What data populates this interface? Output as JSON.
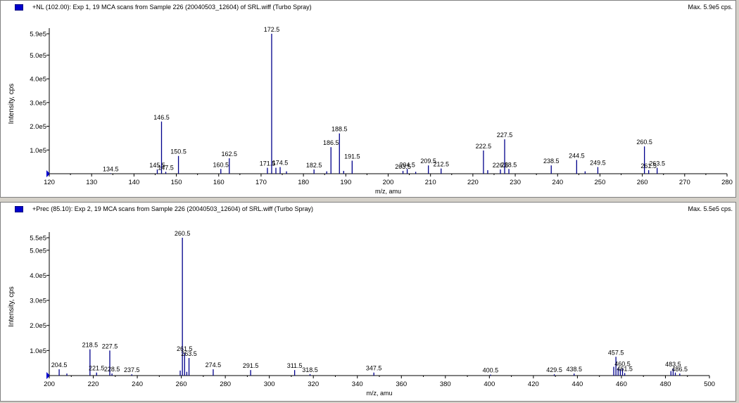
{
  "chart_data": [
    {
      "type": "bar",
      "title": "+NL (102.00): Exp 1, 19 MCA scans from Sample 226 (20040503_12604) of SRL.wiff (Turbo Spray)",
      "max_label": "Max. 5.9e5 cps.",
      "xlabel": "m/z, amu",
      "ylabel": "Intensity, cps",
      "xlim": [
        120,
        280
      ],
      "ylim": [
        0,
        600000
      ],
      "xticks": [
        120,
        130,
        140,
        150,
        160,
        170,
        180,
        190,
        200,
        210,
        220,
        230,
        240,
        250,
        260,
        270,
        280
      ],
      "yticks": [
        {
          "value": 100000,
          "label": "1.0e5"
        },
        {
          "value": 200000,
          "label": "2.0e5"
        },
        {
          "value": 300000,
          "label": "3.0e5"
        },
        {
          "value": 400000,
          "label": "4.0e5"
        },
        {
          "value": 500000,
          "label": "5.0e5"
        },
        {
          "value": 590000,
          "label": "5.9e5"
        }
      ],
      "peaks": [
        {
          "x": 134.5,
          "y": 2000,
          "label": "134.5"
        },
        {
          "x": 145.5,
          "y": 18000,
          "label": "145.5"
        },
        {
          "x": 146.5,
          "y": 220000,
          "label": "146.5"
        },
        {
          "x": 147.5,
          "y": 8000,
          "label": "147.5"
        },
        {
          "x": 150.5,
          "y": 75000,
          "label": "150.5"
        },
        {
          "x": 160.5,
          "y": 20000,
          "label": "160.5"
        },
        {
          "x": 162.5,
          "y": 65000,
          "label": "162.5"
        },
        {
          "x": 171.5,
          "y": 25000,
          "label": "171.5"
        },
        {
          "x": 172.5,
          "y": 590000,
          "label": "172.5"
        },
        {
          "x": 173.5,
          "y": 25000,
          "label": ""
        },
        {
          "x": 174.5,
          "y": 28000,
          "label": "174.5"
        },
        {
          "x": 176.0,
          "y": 10000,
          "label": ""
        },
        {
          "x": 182.5,
          "y": 18000,
          "label": "182.5"
        },
        {
          "x": 185.5,
          "y": 10000,
          "label": ""
        },
        {
          "x": 186.5,
          "y": 112000,
          "label": "186.5"
        },
        {
          "x": 188.5,
          "y": 170000,
          "label": "188.5"
        },
        {
          "x": 189.5,
          "y": 12000,
          "label": ""
        },
        {
          "x": 191.5,
          "y": 55000,
          "label": "191.5"
        },
        {
          "x": 203.5,
          "y": 12000,
          "label": "203.5"
        },
        {
          "x": 204.5,
          "y": 20000,
          "label": "204.5"
        },
        {
          "x": 206.5,
          "y": 8000,
          "label": ""
        },
        {
          "x": 209.5,
          "y": 35000,
          "label": "209.5"
        },
        {
          "x": 212.5,
          "y": 22000,
          "label": "212.5"
        },
        {
          "x": 222.5,
          "y": 98000,
          "label": "222.5"
        },
        {
          "x": 223.5,
          "y": 15000,
          "label": ""
        },
        {
          "x": 226.5,
          "y": 18000,
          "label": "226.5"
        },
        {
          "x": 227.5,
          "y": 145000,
          "label": "227.5"
        },
        {
          "x": 228.5,
          "y": 20000,
          "label": "228.5"
        },
        {
          "x": 238.5,
          "y": 35000,
          "label": "238.5"
        },
        {
          "x": 244.5,
          "y": 58000,
          "label": "244.5"
        },
        {
          "x": 246.5,
          "y": 10000,
          "label": ""
        },
        {
          "x": 249.5,
          "y": 28000,
          "label": "249.5"
        },
        {
          "x": 260.5,
          "y": 115000,
          "label": "260.5"
        },
        {
          "x": 261.5,
          "y": 15000,
          "label": "261.5"
        },
        {
          "x": 263.5,
          "y": 25000,
          "label": "263.5"
        }
      ]
    },
    {
      "type": "bar",
      "title": "+Prec (85.10): Exp 2, 19 MCA scans from Sample 226 (20040503_12604) of SRL.wiff (Turbo Spray)",
      "max_label": "Max. 5.5e5 cps.",
      "xlabel": "m/z, amu",
      "ylabel": "Intensity, cps",
      "xlim": [
        200,
        500
      ],
      "ylim": [
        0,
        560000
      ],
      "xticks": [
        200,
        220,
        240,
        260,
        280,
        300,
        320,
        340,
        360,
        380,
        400,
        420,
        440,
        460,
        480,
        500
      ],
      "yticks": [
        {
          "value": 100000,
          "label": "1.0e5"
        },
        {
          "value": 200000,
          "label": "2.0e5"
        },
        {
          "value": 300000,
          "label": "3.0e5"
        },
        {
          "value": 400000,
          "label": "4.0e5"
        },
        {
          "value": 500000,
          "label": "5.0e5"
        },
        {
          "value": 550000,
          "label": "5.5e5"
        }
      ],
      "peaks": [
        {
          "x": 204.5,
          "y": 25000,
          "label": "204.5"
        },
        {
          "x": 208.0,
          "y": 8000,
          "label": ""
        },
        {
          "x": 218.5,
          "y": 105000,
          "label": "218.5"
        },
        {
          "x": 221.5,
          "y": 12000,
          "label": "221.5"
        },
        {
          "x": 227.5,
          "y": 100000,
          "label": "227.5"
        },
        {
          "x": 228.5,
          "y": 8000,
          "label": "228.5"
        },
        {
          "x": 237.5,
          "y": 5000,
          "label": "237.5"
        },
        {
          "x": 259.5,
          "y": 20000,
          "label": ""
        },
        {
          "x": 260.5,
          "y": 550000,
          "label": "260.5"
        },
        {
          "x": 261.5,
          "y": 90000,
          "label": "261.5"
        },
        {
          "x": 262.5,
          "y": 15000,
          "label": ""
        },
        {
          "x": 263.5,
          "y": 70000,
          "label": "263.5"
        },
        {
          "x": 274.5,
          "y": 25000,
          "label": "274.5"
        },
        {
          "x": 291.5,
          "y": 22000,
          "label": "291.5"
        },
        {
          "x": 311.5,
          "y": 22000,
          "label": "311.5"
        },
        {
          "x": 318.5,
          "y": 6000,
          "label": "318.5"
        },
        {
          "x": 347.5,
          "y": 12000,
          "label": "347.5"
        },
        {
          "x": 400.5,
          "y": 4000,
          "label": "400.5"
        },
        {
          "x": 429.5,
          "y": 5000,
          "label": "429.5"
        },
        {
          "x": 438.5,
          "y": 8000,
          "label": "438.5"
        },
        {
          "x": 456.5,
          "y": 35000,
          "label": ""
        },
        {
          "x": 457.5,
          "y": 75000,
          "label": "457.5"
        },
        {
          "x": 458.5,
          "y": 30000,
          "label": ""
        },
        {
          "x": 459.5,
          "y": 25000,
          "label": ""
        },
        {
          "x": 460.5,
          "y": 30000,
          "label": "460.5"
        },
        {
          "x": 461.5,
          "y": 10000,
          "label": "461.5"
        },
        {
          "x": 482.5,
          "y": 18000,
          "label": ""
        },
        {
          "x": 483.5,
          "y": 28000,
          "label": "483.5"
        },
        {
          "x": 484.5,
          "y": 12000,
          "label": ""
        },
        {
          "x": 486.5,
          "y": 8000,
          "label": "486.5"
        }
      ]
    }
  ]
}
